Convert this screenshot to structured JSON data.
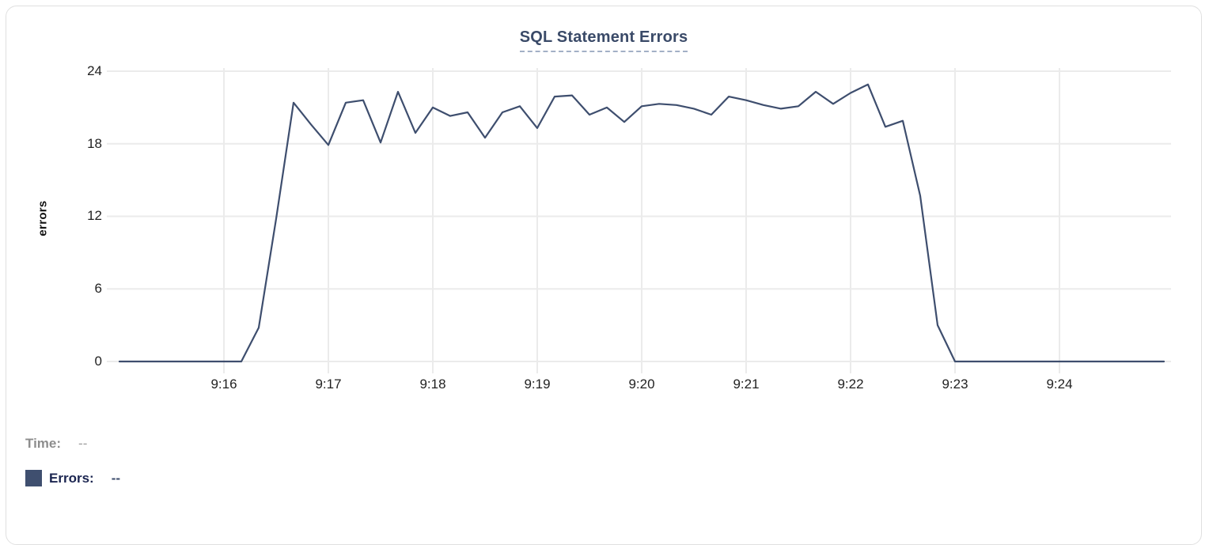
{
  "chart": {
    "title": "SQL Statement Errors",
    "ylabel": "errors"
  },
  "legend": {
    "time_label": "Time:",
    "time_value": "--",
    "errors_label": "Errors:",
    "errors_value": "--"
  },
  "colors": {
    "line": "#3e4e6e",
    "title": "#3a4a68",
    "title_underline": "#a3b0c6",
    "grid": "#ebebeb",
    "tick_text": "#222222",
    "time_label": "#8d8d8d",
    "errors_label": "#1b2550",
    "legend_swatch": "#3f4f6f",
    "card_border": "#e0e0e0"
  },
  "chart_data": {
    "type": "line",
    "title": "SQL Statement Errors",
    "xlabel": "",
    "ylabel": "errors",
    "x_ticks": [
      "9:16",
      "9:17",
      "9:18",
      "9:19",
      "9:20",
      "9:21",
      "9:22",
      "9:23",
      "9:24"
    ],
    "y_ticks": [
      0,
      6,
      12,
      18,
      24
    ],
    "ylim": [
      0,
      24
    ],
    "xlim_minutes_after_9am": [
      14.94,
      25.06
    ],
    "grid": true,
    "legend_position": "bottom-left",
    "series": [
      {
        "name": "Errors",
        "color": "#3e4e6e",
        "x_minutes_after_9am": [
          15,
          15.167,
          15.333,
          15.5,
          15.667,
          15.833,
          16,
          16.167,
          16.333,
          16.5,
          16.667,
          16.833,
          17,
          17.167,
          17.333,
          17.5,
          17.667,
          17.833,
          18,
          18.167,
          18.333,
          18.5,
          18.667,
          18.833,
          19,
          19.167,
          19.333,
          19.5,
          19.667,
          19.833,
          20,
          20.167,
          20.333,
          20.5,
          20.667,
          20.833,
          21,
          21.167,
          21.333,
          21.5,
          21.667,
          21.833,
          22,
          22.167,
          22.333,
          22.5,
          22.667,
          22.833,
          23,
          23.167,
          23.333,
          23.5,
          23.667,
          23.833,
          24,
          24.167,
          24.333,
          24.5,
          24.667,
          24.833,
          25
        ],
        "values": [
          0,
          0,
          0,
          0,
          0,
          0,
          0,
          0,
          2.8,
          11.8,
          21.4,
          19.6,
          17.9,
          21.4,
          21.6,
          18.1,
          22.3,
          18.9,
          21,
          20.3,
          20.6,
          18.5,
          20.6,
          21.1,
          19.3,
          21.9,
          22,
          20.4,
          21,
          19.8,
          21.1,
          21.3,
          21.2,
          20.9,
          20.4,
          21.9,
          21.6,
          21.2,
          20.9,
          21.1,
          22.3,
          21.3,
          22.2,
          22.9,
          19.4,
          19.9,
          13.7,
          3,
          0,
          0,
          0,
          0,
          0,
          0,
          0,
          0,
          0,
          0,
          0,
          0,
          0
        ]
      }
    ]
  }
}
